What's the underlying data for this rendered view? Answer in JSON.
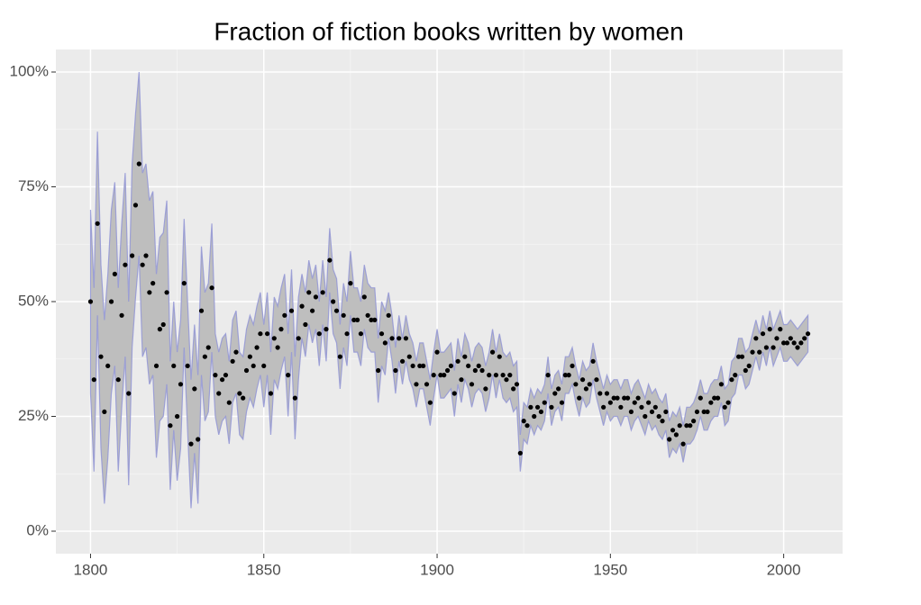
{
  "chart_data": {
    "type": "scatter",
    "title": "Fraction of fiction books written by women",
    "x": [
      1800,
      1801,
      1802,
      1803,
      1804,
      1805,
      1806,
      1807,
      1808,
      1809,
      1810,
      1811,
      1812,
      1813,
      1814,
      1815,
      1816,
      1817,
      1818,
      1819,
      1820,
      1821,
      1822,
      1823,
      1824,
      1825,
      1826,
      1827,
      1828,
      1829,
      1830,
      1831,
      1832,
      1833,
      1834,
      1835,
      1836,
      1837,
      1838,
      1839,
      1840,
      1841,
      1842,
      1843,
      1844,
      1845,
      1846,
      1847,
      1848,
      1849,
      1850,
      1851,
      1852,
      1853,
      1854,
      1855,
      1856,
      1857,
      1858,
      1859,
      1860,
      1861,
      1862,
      1863,
      1864,
      1865,
      1866,
      1867,
      1868,
      1869,
      1870,
      1871,
      1872,
      1873,
      1874,
      1875,
      1876,
      1877,
      1878,
      1879,
      1880,
      1881,
      1882,
      1883,
      1884,
      1885,
      1886,
      1887,
      1888,
      1889,
      1890,
      1891,
      1892,
      1893,
      1894,
      1895,
      1896,
      1897,
      1898,
      1899,
      1900,
      1901,
      1902,
      1903,
      1904,
      1905,
      1906,
      1907,
      1908,
      1909,
      1910,
      1911,
      1912,
      1913,
      1914,
      1915,
      1916,
      1917,
      1918,
      1919,
      1920,
      1921,
      1922,
      1923,
      1924,
      1925,
      1926,
      1927,
      1928,
      1929,
      1930,
      1931,
      1932,
      1933,
      1934,
      1935,
      1936,
      1937,
      1938,
      1939,
      1940,
      1941,
      1942,
      1943,
      1944,
      1945,
      1946,
      1947,
      1948,
      1949,
      1950,
      1951,
      1952,
      1953,
      1954,
      1955,
      1956,
      1957,
      1958,
      1959,
      1960,
      1961,
      1962,
      1963,
      1964,
      1965,
      1966,
      1967,
      1968,
      1969,
      1970,
      1971,
      1972,
      1973,
      1974,
      1975,
      1976,
      1977,
      1978,
      1979,
      1980,
      1981,
      1982,
      1983,
      1984,
      1985,
      1986,
      1987,
      1988,
      1989,
      1990,
      1991,
      1992,
      1993,
      1994,
      1995,
      1996,
      1997,
      1998,
      1999,
      2000,
      2001,
      2002,
      2003,
      2004,
      2005,
      2006,
      2007
    ],
    "series": [
      {
        "color": "#000000",
        "ribbon_fill": "#bebebe",
        "ribbon_line": "#8e92d6",
        "values": [
          50,
          33,
          67,
          38,
          26,
          36,
          50,
          56,
          33,
          47,
          58,
          30,
          60,
          71,
          80,
          58,
          60,
          52,
          54,
          36,
          44,
          45,
          52,
          23,
          36,
          25,
          32,
          54,
          36,
          19,
          31,
          20,
          48,
          38,
          40,
          53,
          34,
          30,
          33,
          34,
          28,
          37,
          39,
          30,
          29,
          35,
          38,
          36,
          40,
          43,
          36,
          43,
          30,
          42,
          40,
          44,
          47,
          34,
          48,
          29,
          42,
          49,
          45,
          52,
          48,
          51,
          43,
          52,
          44,
          59,
          50,
          48,
          38,
          47,
          43,
          54,
          46,
          46,
          43,
          51,
          47,
          46,
          46,
          35,
          43,
          41,
          47,
          42,
          35,
          42,
          37,
          42,
          38,
          36,
          32,
          36,
          36,
          32,
          28,
          34,
          39,
          34,
          34,
          35,
          36,
          30,
          37,
          33,
          38,
          36,
          32,
          35,
          36,
          35,
          31,
          34,
          39,
          34,
          38,
          34,
          33,
          34,
          31,
          32,
          17,
          24,
          23,
          27,
          25,
          27,
          26,
          28,
          34,
          27,
          30,
          31,
          28,
          34,
          34,
          36,
          32,
          29,
          33,
          31,
          32,
          37,
          33,
          30,
          27,
          30,
          28,
          29,
          29,
          27,
          29,
          29,
          26,
          28,
          29,
          27,
          25,
          28,
          26,
          27,
          25,
          24,
          26,
          20,
          22,
          21,
          23,
          19,
          23,
          23,
          24,
          26,
          29,
          26,
          26,
          28,
          29,
          29,
          32,
          27,
          28,
          33,
          34,
          38,
          38,
          35,
          36,
          39,
          42,
          39,
          43,
          40,
          44,
          40,
          42,
          44,
          41,
          41,
          42,
          41,
          40,
          41,
          42,
          43
        ],
        "lower": [
          30,
          13,
          47,
          18,
          6,
          16,
          30,
          36,
          13,
          27,
          38,
          10,
          40,
          51,
          60,
          38,
          40,
          32,
          34,
          16,
          24,
          25,
          32,
          9,
          22,
          11,
          18,
          40,
          22,
          5,
          17,
          6,
          34,
          24,
          26,
          39,
          25,
          21,
          24,
          25,
          19,
          28,
          30,
          21,
          20,
          26,
          29,
          27,
          31,
          34,
          27,
          34,
          21,
          33,
          31,
          35,
          38,
          25,
          39,
          20,
          33,
          42,
          38,
          45,
          41,
          44,
          36,
          45,
          37,
          52,
          43,
          41,
          31,
          40,
          36,
          47,
          39,
          39,
          36,
          44,
          40,
          39,
          39,
          28,
          36,
          34,
          42,
          37,
          30,
          37,
          32,
          37,
          33,
          31,
          27,
          31,
          31,
          27,
          23,
          29,
          34,
          29,
          29,
          30,
          31,
          25,
          32,
          28,
          33,
          31,
          27,
          30,
          31,
          30,
          26,
          29,
          34,
          29,
          33,
          29,
          28,
          29,
          26,
          27,
          13,
          20,
          19,
          23,
          21,
          23,
          22,
          24,
          30,
          23,
          26,
          27,
          24,
          30,
          30,
          32,
          28,
          25,
          29,
          27,
          28,
          33,
          29,
          26,
          23,
          26,
          24,
          25,
          25,
          23,
          25,
          25,
          22,
          24,
          25,
          23,
          21,
          24,
          22,
          23,
          21,
          20,
          22,
          16,
          18,
          17,
          19,
          15,
          19,
          19,
          20,
          22,
          25,
          22,
          22,
          24,
          25,
          25,
          28,
          23,
          24,
          29,
          30,
          34,
          34,
          31,
          32,
          35,
          38,
          35,
          39,
          36,
          40,
          36,
          38,
          40,
          37,
          37,
          38,
          37,
          36,
          37,
          38,
          39
        ],
        "upper": [
          70,
          53,
          87,
          58,
          46,
          56,
          70,
          76,
          53,
          67,
          78,
          50,
          80,
          91,
          100,
          78,
          80,
          72,
          74,
          56,
          64,
          65,
          72,
          37,
          50,
          39,
          46,
          68,
          50,
          33,
          45,
          34,
          62,
          52,
          54,
          67,
          43,
          39,
          42,
          43,
          37,
          46,
          48,
          39,
          38,
          44,
          47,
          45,
          49,
          52,
          45,
          52,
          39,
          51,
          49,
          53,
          56,
          43,
          57,
          38,
          51,
          56,
          52,
          59,
          55,
          58,
          50,
          59,
          51,
          66,
          57,
          55,
          45,
          54,
          50,
          61,
          53,
          53,
          50,
          58,
          54,
          53,
          53,
          42,
          50,
          48,
          52,
          47,
          40,
          47,
          42,
          47,
          43,
          41,
          37,
          41,
          41,
          37,
          33,
          39,
          44,
          39,
          39,
          40,
          41,
          35,
          42,
          38,
          43,
          41,
          37,
          40,
          41,
          40,
          36,
          39,
          44,
          39,
          43,
          39,
          38,
          39,
          36,
          37,
          21,
          28,
          27,
          31,
          29,
          31,
          30,
          32,
          38,
          31,
          34,
          35,
          32,
          38,
          38,
          40,
          36,
          33,
          37,
          35,
          36,
          41,
          37,
          34,
          31,
          34,
          32,
          33,
          33,
          31,
          33,
          33,
          30,
          32,
          33,
          31,
          29,
          32,
          30,
          31,
          29,
          28,
          30,
          24,
          26,
          25,
          27,
          23,
          27,
          27,
          28,
          30,
          33,
          30,
          30,
          32,
          33,
          33,
          36,
          31,
          32,
          37,
          38,
          42,
          42,
          39,
          40,
          43,
          46,
          43,
          47,
          44,
          48,
          44,
          46,
          48,
          45,
          45,
          46,
          45,
          44,
          45,
          46,
          47
        ]
      }
    ],
    "xlim": [
      1790,
      2017
    ],
    "xticks": [
      1800,
      1850,
      1900,
      1950,
      2000
    ],
    "ylim": [
      -4.9,
      104.9
    ],
    "yticks": [
      {
        "value": 0,
        "label": "0%"
      },
      {
        "value": 25,
        "label": "25%"
      },
      {
        "value": 50,
        "label": "50%"
      },
      {
        "value": 75,
        "label": "75%"
      },
      {
        "value": 100,
        "label": "100%"
      }
    ],
    "grid": true
  }
}
